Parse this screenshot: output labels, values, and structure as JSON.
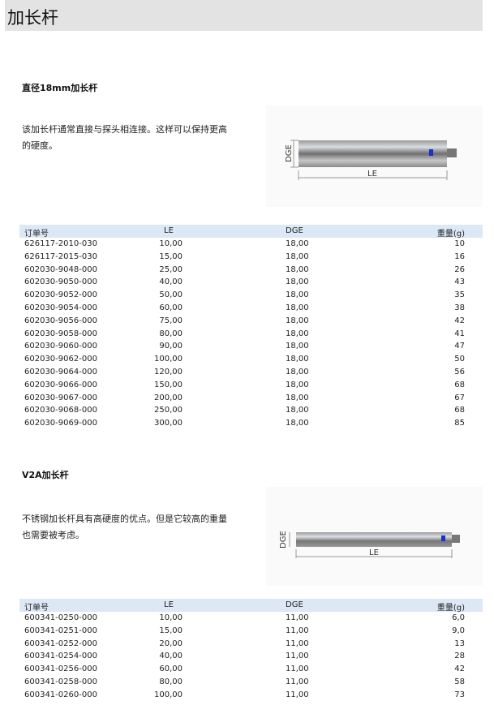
{
  "header": {
    "title": "加长杆"
  },
  "sections": [
    {
      "title": "直径18mm加长杆",
      "description": "该加长杆通常直接与探头相连接。这样可以保持更高的硬度。",
      "diagram": {
        "dge_label": "DGE",
        "le_label": "LE"
      },
      "table": {
        "columns": [
          "订单号",
          "LE",
          "DGE",
          "重量(g)"
        ],
        "rows": [
          [
            "626117-2010-030",
            "10,00",
            "18,00",
            "10"
          ],
          [
            "626117-2015-030",
            "15,00",
            "18,00",
            "16"
          ],
          [
            "602030-9048-000",
            "25,00",
            "18,00",
            "26"
          ],
          [
            "602030-9050-000",
            "40,00",
            "18,00",
            "43"
          ],
          [
            "602030-9052-000",
            "50,00",
            "18,00",
            "35"
          ],
          [
            "602030-9054-000",
            "60,00",
            "18,00",
            "38"
          ],
          [
            "602030-9056-000",
            "75,00",
            "18,00",
            "42"
          ],
          [
            "602030-9058-000",
            "80,00",
            "18,00",
            "41"
          ],
          [
            "602030-9060-000",
            "90,00",
            "18,00",
            "47"
          ],
          [
            "602030-9062-000",
            "100,00",
            "18,00",
            "50"
          ],
          [
            "602030-9064-000",
            "120,00",
            "18,00",
            "56"
          ],
          [
            "602030-9066-000",
            "150,00",
            "18,00",
            "68"
          ],
          [
            "602030-9067-000",
            "200,00",
            "18,00",
            "67"
          ],
          [
            "602030-9068-000",
            "250,00",
            "18,00",
            "68"
          ],
          [
            "602030-9069-000",
            "300,00",
            "18,00",
            "85"
          ]
        ]
      }
    },
    {
      "title": "V2A加长杆",
      "description": "不锈钢加长杆具有高硬度的优点。但是它较高的重量也需要被考虑。",
      "diagram": {
        "dge_label": "DGE",
        "le_label": "LE"
      },
      "table": {
        "columns": [
          "订单号",
          "LE",
          "DGE",
          "重量(g)"
        ],
        "rows": [
          [
            "600341-0250-000",
            "10,00",
            "11,00",
            "6,0"
          ],
          [
            "600341-0251-000",
            "15,00",
            "11,00",
            "9,0"
          ],
          [
            "600341-0252-000",
            "20,00",
            "11,00",
            "13"
          ],
          [
            "600341-0254-000",
            "40,00",
            "11,00",
            "28"
          ],
          [
            "600341-0256-000",
            "60,00",
            "11,00",
            "42"
          ],
          [
            "600341-0258-000",
            "80,00",
            "11,00",
            "58"
          ],
          [
            "600341-0260-000",
            "100,00",
            "11,00",
            "73"
          ]
        ]
      }
    }
  ]
}
